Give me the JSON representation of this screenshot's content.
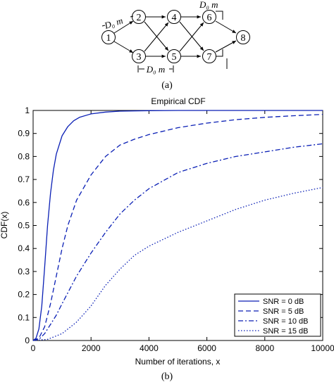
{
  "diagram": {
    "nodes": [
      "1",
      "2",
      "3",
      "4",
      "5",
      "6",
      "7",
      "8"
    ],
    "distance_label": "D₀ m",
    "caption": "(a)"
  },
  "chart_data": {
    "type": "line",
    "title": "Empirical CDF",
    "xlabel": "Number of iterations, x",
    "ylabel": "CDF(x)",
    "xlim": [
      0,
      10000
    ],
    "ylim": [
      0,
      1
    ],
    "xticks": [
      0,
      2000,
      4000,
      6000,
      8000,
      10000
    ],
    "yticks": [
      0,
      0.1,
      0.2,
      0.3,
      0.4,
      0.5,
      0.6,
      0.7,
      0.8,
      0.9,
      1
    ],
    "grid": false,
    "legend_position": "bottom-right",
    "series": [
      {
        "name": "SNR = 0 dB",
        "style": "solid",
        "x": [
          0,
          100,
          200,
          300,
          400,
          500,
          600,
          700,
          800,
          1000,
          1200,
          1400,
          1600,
          2000,
          2500,
          3000,
          4000,
          5000,
          6000,
          8000,
          10000
        ],
        "y": [
          0,
          0.01,
          0.05,
          0.15,
          0.32,
          0.5,
          0.64,
          0.74,
          0.81,
          0.89,
          0.93,
          0.955,
          0.97,
          0.985,
          0.993,
          0.997,
          0.999,
          1.0,
          1.0,
          1.0,
          1.0
        ]
      },
      {
        "name": "SNR = 5 dB",
        "style": "dashed",
        "x": [
          0,
          200,
          400,
          600,
          800,
          1000,
          1200,
          1500,
          2000,
          2500,
          3000,
          3500,
          4000,
          5000,
          6000,
          7000,
          8000,
          9000,
          10000
        ],
        "y": [
          0,
          0.01,
          0.06,
          0.16,
          0.28,
          0.4,
          0.5,
          0.61,
          0.72,
          0.8,
          0.85,
          0.875,
          0.895,
          0.925,
          0.945,
          0.96,
          0.97,
          0.977,
          0.983
        ]
      },
      {
        "name": "SNR = 10 dB",
        "style": "dashdot",
        "x": [
          0,
          200,
          400,
          600,
          800,
          1000,
          1500,
          2000,
          2500,
          3000,
          3500,
          4000,
          5000,
          6000,
          7000,
          8000,
          9000,
          10000
        ],
        "y": [
          0,
          0.005,
          0.03,
          0.07,
          0.11,
          0.16,
          0.28,
          0.38,
          0.47,
          0.55,
          0.61,
          0.66,
          0.73,
          0.77,
          0.8,
          0.82,
          0.84,
          0.855
        ]
      },
      {
        "name": "SNR = 15 dB",
        "style": "dotted",
        "x": [
          0,
          500,
          1000,
          1500,
          2000,
          2500,
          3000,
          3500,
          4000,
          5000,
          6000,
          7000,
          8000,
          9000,
          10000
        ],
        "y": [
          0,
          0.005,
          0.03,
          0.08,
          0.15,
          0.24,
          0.31,
          0.37,
          0.41,
          0.47,
          0.52,
          0.57,
          0.61,
          0.64,
          0.665
        ]
      }
    ],
    "caption": "(b)"
  }
}
